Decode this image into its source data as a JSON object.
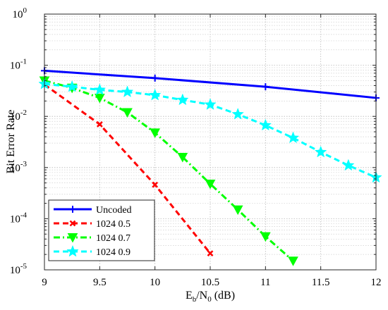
{
  "chart_data": {
    "type": "line",
    "xlabel": {
      "base": "E",
      "sub1": "b",
      "mid": "/N",
      "sub2": "0",
      "tail": " (dB)"
    },
    "ylabel": "Bit Error Rate",
    "xlim": [
      9,
      12
    ],
    "ylim": [
      1e-05,
      1
    ],
    "y_scale": "log",
    "grid": true,
    "legend_position": "bottom-left",
    "x_ticks": [
      "9",
      "9.5",
      "10",
      "10.5",
      "11",
      "11.5",
      "12"
    ],
    "y_ticks": [
      {
        "base": "10",
        "exp": "-5"
      },
      {
        "base": "10",
        "exp": "-4"
      },
      {
        "base": "10",
        "exp": "-3"
      },
      {
        "base": "10",
        "exp": "-2"
      },
      {
        "base": "10",
        "exp": "-1"
      },
      {
        "base": "10",
        "exp": "0"
      }
    ],
    "series": [
      {
        "name": "Uncoded",
        "color": "#0000ff",
        "line_style": "solid",
        "marker": "plus",
        "x": [
          9,
          10,
          11,
          12
        ],
        "y": [
          0.078,
          0.056,
          0.038,
          0.023
        ]
      },
      {
        "name": "1024  0.5",
        "color": "#ff0000",
        "line_style": "dashed",
        "marker": "x",
        "x": [
          9,
          9.5,
          10,
          10.5
        ],
        "y": [
          0.042,
          0.007,
          0.00046,
          2.1e-05
        ]
      },
      {
        "name": "1024  0.7",
        "color": "#00ff00",
        "line_style": "dashdot",
        "marker": "triangle-down",
        "x": [
          9,
          9.25,
          9.5,
          9.75,
          10,
          10.25,
          10.5,
          10.75,
          11,
          11.25
        ],
        "y": [
          0.05,
          0.036,
          0.023,
          0.012,
          0.0048,
          0.0016,
          0.00048,
          0.00015,
          4.5e-05,
          1.5e-05
        ]
      },
      {
        "name": "1024  0.9",
        "color": "#00ffff",
        "line_style": "dashed",
        "marker": "star",
        "x": [
          9,
          9.25,
          9.5,
          9.75,
          10,
          10.25,
          10.5,
          10.75,
          11,
          11.25,
          11.5,
          11.75,
          12
        ],
        "y": [
          0.043,
          0.038,
          0.033,
          0.03,
          0.026,
          0.021,
          0.017,
          0.011,
          0.0067,
          0.0038,
          0.002,
          0.0011,
          0.00064
        ]
      }
    ]
  }
}
